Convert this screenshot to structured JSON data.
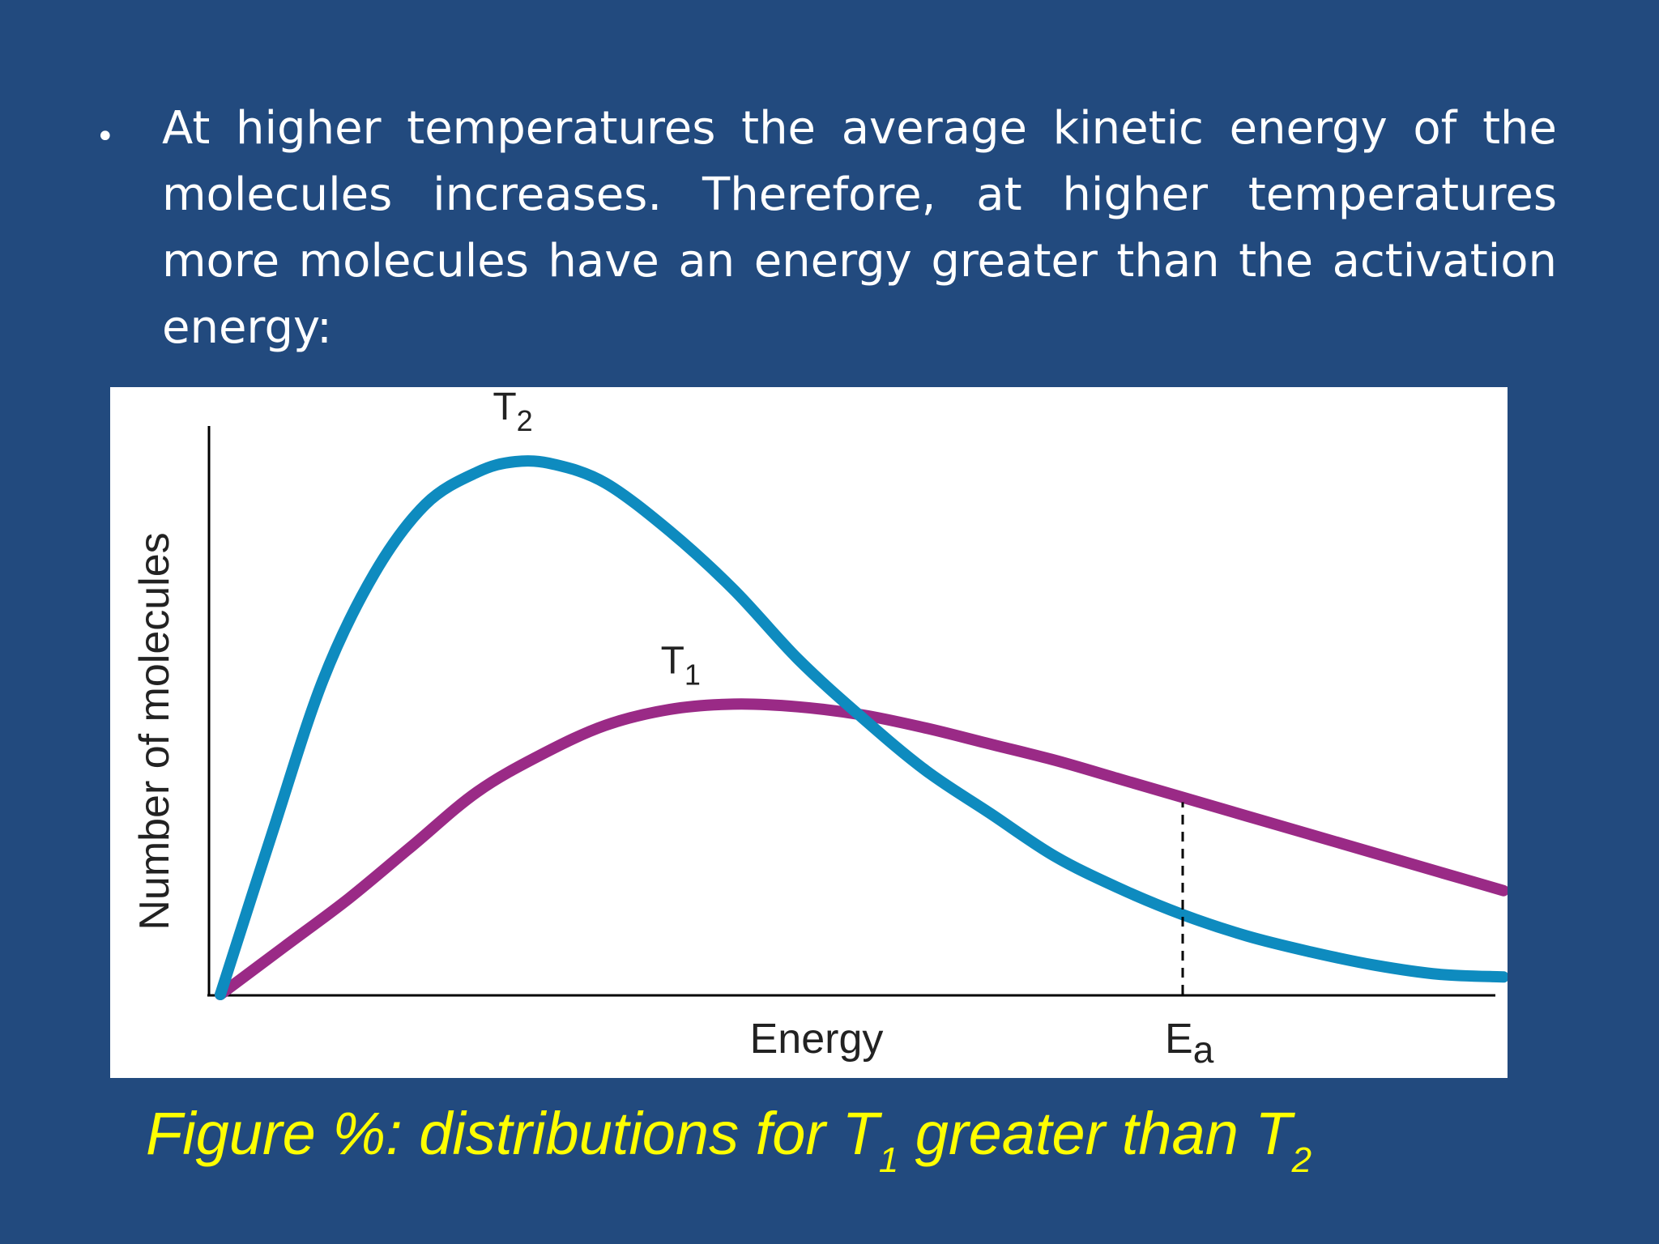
{
  "slide": {
    "bullet_text": "At higher temperatures the average kinetic energy of the molecules increases. Therefore, at higher temperatures more molecules have an energy greater than the activation energy:",
    "caption": {
      "prefix": "Figure %: distributions for T",
      "sub1": "1",
      "middle": " greater than T",
      "sub2": "2"
    }
  },
  "chart_data": {
    "type": "line",
    "title": "",
    "xlabel": "Energy",
    "ylabel": "Number of molecules",
    "xlim": [
      0,
      100
    ],
    "ylim": [
      0,
      100
    ],
    "grid": false,
    "series": [
      {
        "name": "T",
        "subscript": "2",
        "color": "#0e8bbf",
        "x": [
          0,
          4,
          8,
          12,
          16,
          20,
          23,
          26,
          30,
          35,
          40,
          45,
          50,
          55,
          60,
          65,
          70,
          75,
          80,
          85,
          90,
          95,
          100
        ],
        "y": [
          0,
          30,
          59,
          79,
          92,
          98,
          100,
          99.5,
          96,
          87,
          76,
          63,
          52,
          42,
          34,
          26,
          20,
          15,
          11,
          8,
          5.5,
          3.8,
          3.3
        ]
      },
      {
        "name": "T",
        "subscript": "1",
        "color": "#9a2a86",
        "x": [
          0,
          5,
          10,
          15,
          20,
          25,
          30,
          35,
          40,
          45,
          50,
          55,
          60,
          65,
          70,
          75,
          80,
          85,
          90,
          95,
          100
        ],
        "y": [
          0,
          9,
          18,
          28,
          38,
          45,
          50.5,
          53.5,
          54.5,
          54,
          52.5,
          50,
          47,
          44,
          40.5,
          37,
          33.5,
          30,
          26.5,
          23,
          19.5
        ]
      }
    ],
    "annotations": [
      {
        "label": "E",
        "subscript": "a",
        "x": 75,
        "style": "dashed vertical line"
      }
    ]
  }
}
